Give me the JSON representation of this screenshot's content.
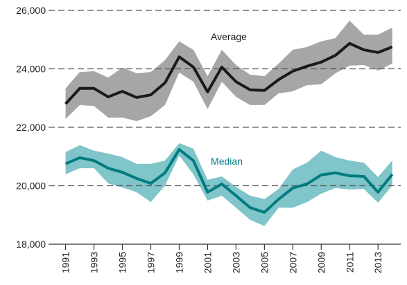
{
  "chart_data": {
    "type": "line",
    "x": [
      1991,
      1992,
      1993,
      1994,
      1995,
      1996,
      1997,
      1998,
      1999,
      2000,
      2001,
      2002,
      2003,
      2004,
      2005,
      2006,
      2007,
      2008,
      2009,
      2010,
      2011,
      2012,
      2013,
      2014
    ],
    "xlim": [
      1989.8,
      2014.6
    ],
    "xticks": [
      1991,
      1993,
      1995,
      1997,
      1999,
      2001,
      2003,
      2005,
      2007,
      2009,
      2011,
      2013
    ],
    "ylim": [
      18000,
      26000
    ],
    "yticks": [
      {
        "value": 18000,
        "label": "18,000"
      },
      {
        "value": 20000,
        "label": "20,000"
      },
      {
        "value": 22000,
        "label": "22,000"
      },
      {
        "value": 24000,
        "label": "24,000"
      },
      {
        "value": 26000,
        "label": "26,000"
      }
    ],
    "grid": true,
    "series": [
      {
        "name": "Average",
        "color": "#1a1a1a",
        "band_color": "#a6a6a6",
        "values": [
          22800,
          23330,
          23330,
          23040,
          23230,
          23020,
          23110,
          23520,
          24410,
          24060,
          23210,
          24060,
          23560,
          23280,
          23260,
          23630,
          23920,
          24090,
          24230,
          24460,
          24870,
          24650,
          24560,
          24750
        ],
        "upper": [
          23330,
          23890,
          23920,
          23700,
          24040,
          23850,
          23890,
          24300,
          24940,
          24650,
          23750,
          24650,
          24130,
          23800,
          23750,
          24180,
          24650,
          24750,
          24940,
          25050,
          25650,
          25170,
          25170,
          25410
        ],
        "lower": [
          22280,
          22760,
          22730,
          22330,
          22330,
          22210,
          22380,
          22760,
          23870,
          23560,
          22620,
          23560,
          23040,
          22760,
          22760,
          23160,
          23230,
          23440,
          23470,
          23850,
          24110,
          24130,
          23940,
          24180
        ]
      },
      {
        "name": "Median",
        "color": "#007b80",
        "band_color": "#7fc5c9",
        "values": [
          20750,
          20960,
          20860,
          20600,
          20460,
          20250,
          20080,
          20440,
          21240,
          20860,
          19780,
          20060,
          19660,
          19250,
          19090,
          19540,
          19920,
          20060,
          20370,
          20440,
          20340,
          20320,
          19780,
          20390
        ],
        "upper": [
          21150,
          21390,
          21200,
          21100,
          20980,
          20750,
          20750,
          20860,
          21460,
          21270,
          20200,
          20320,
          19960,
          19660,
          19540,
          19890,
          20560,
          20790,
          21200,
          20980,
          20860,
          20790,
          20300,
          20860
        ],
        "lower": [
          20390,
          20600,
          20600,
          20080,
          19940,
          19780,
          19440,
          20010,
          21030,
          20390,
          19490,
          19660,
          19250,
          18830,
          18620,
          19250,
          19250,
          19440,
          19730,
          19920,
          19870,
          19890,
          19420,
          20010
        ]
      }
    ]
  }
}
